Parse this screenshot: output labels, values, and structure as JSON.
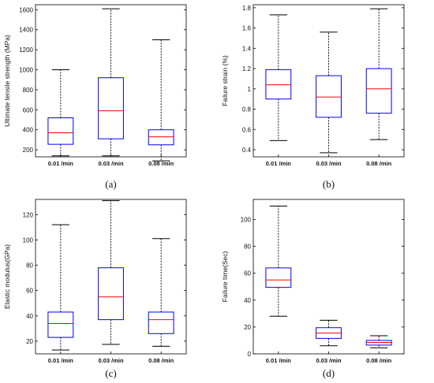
{
  "chart_data": [
    {
      "type": "box",
      "panel_label": "(a)",
      "ylabel": "Ultimate tensile strength (MPa)",
      "categories": [
        "0.01 /min",
        "0.03 /min",
        "0.08 /min"
      ],
      "ylim": [
        130,
        1650
      ],
      "yticks": [
        200,
        400,
        600,
        800,
        1000,
        1200,
        1400,
        1600
      ],
      "ytick_labels": [
        "200",
        "400",
        "600",
        "800",
        "1000",
        "1200",
        "1400",
        "1600"
      ],
      "boxes": [
        {
          "min": 140,
          "q1": 255,
          "median": 370,
          "q3": 520,
          "max": 1000
        },
        {
          "min": 140,
          "q1": 310,
          "median": 590,
          "q3": 920,
          "max": 1610
        },
        {
          "min": 90,
          "q1": 250,
          "median": 330,
          "q3": 400,
          "max": 1300
        }
      ],
      "colors": {
        "box": "#0000ff",
        "median": "#ff0000",
        "whisker": "#000000"
      }
    },
    {
      "type": "box",
      "panel_label": "(b)",
      "ylabel": "Failure strain (%)",
      "categories": [
        "0.01 /min",
        "0.03 /min",
        "0.08 /min"
      ],
      "ylim": [
        0.33,
        1.83
      ],
      "yticks": [
        0.4,
        0.6,
        0.8,
        1.0,
        1.2,
        1.4,
        1.6,
        1.8
      ],
      "ytick_labels": [
        "0.4",
        "0.6",
        "0.8",
        "1",
        "1.2",
        "1.4",
        "1.6",
        "1.8"
      ],
      "boxes": [
        {
          "min": 0.49,
          "q1": 0.9,
          "median": 1.04,
          "q3": 1.19,
          "max": 1.73
        },
        {
          "min": 0.37,
          "q1": 0.72,
          "median": 0.92,
          "q3": 1.13,
          "max": 1.56
        },
        {
          "min": 0.5,
          "q1": 0.76,
          "median": 1.0,
          "q3": 1.2,
          "max": 1.79
        }
      ],
      "colors": {
        "box": "#0000ff",
        "median": "#ff0000",
        "whisker": "#000000"
      }
    },
    {
      "type": "box",
      "panel_label": "(c)",
      "ylabel": "Elastic modulus(GPa)",
      "categories": [
        "0.01 /min",
        "0.03 /min",
        "0.08 /min"
      ],
      "ylim": [
        10,
        132
      ],
      "yticks": [
        20,
        40,
        60,
        80,
        100,
        120
      ],
      "ytick_labels": [
        "20",
        "40",
        "60",
        "80",
        "100",
        "120"
      ],
      "boxes": [
        {
          "min": 13,
          "q1": 23,
          "median": 34,
          "q3": 43,
          "max": 112
        },
        {
          "min": 17.5,
          "q1": 37,
          "median": 55,
          "q3": 78,
          "max": 131
        },
        {
          "min": 16,
          "q1": 26,
          "median": 37,
          "q3": 43,
          "max": 101
        }
      ],
      "colors": {
        "box": "#0000ff",
        "median": "#ff0000",
        "whisker": "#000000"
      }
    },
    {
      "type": "box",
      "panel_label": "(d)",
      "ylabel": "Failure time(Sec)",
      "categories": [
        "0.01 /min",
        "0.03 /min",
        "0.08 /min"
      ],
      "ylim": [
        0,
        115
      ],
      "yticks": [
        0,
        20,
        40,
        60,
        80,
        100
      ],
      "ytick_labels": [
        "0",
        "20",
        "40",
        "60",
        "80",
        "100"
      ],
      "boxes": [
        {
          "min": 28,
          "q1": 49.5,
          "median": 55,
          "q3": 64,
          "max": 110
        },
        {
          "min": 6,
          "q1": 11.5,
          "median": 15.5,
          "q3": 19.5,
          "max": 25
        },
        {
          "min": 4.5,
          "q1": 6.5,
          "median": 8.5,
          "q3": 10,
          "max": 13.5
        }
      ],
      "colors": {
        "box": "#0000ff",
        "median": "#ff0000",
        "whisker": "#000000"
      }
    }
  ]
}
